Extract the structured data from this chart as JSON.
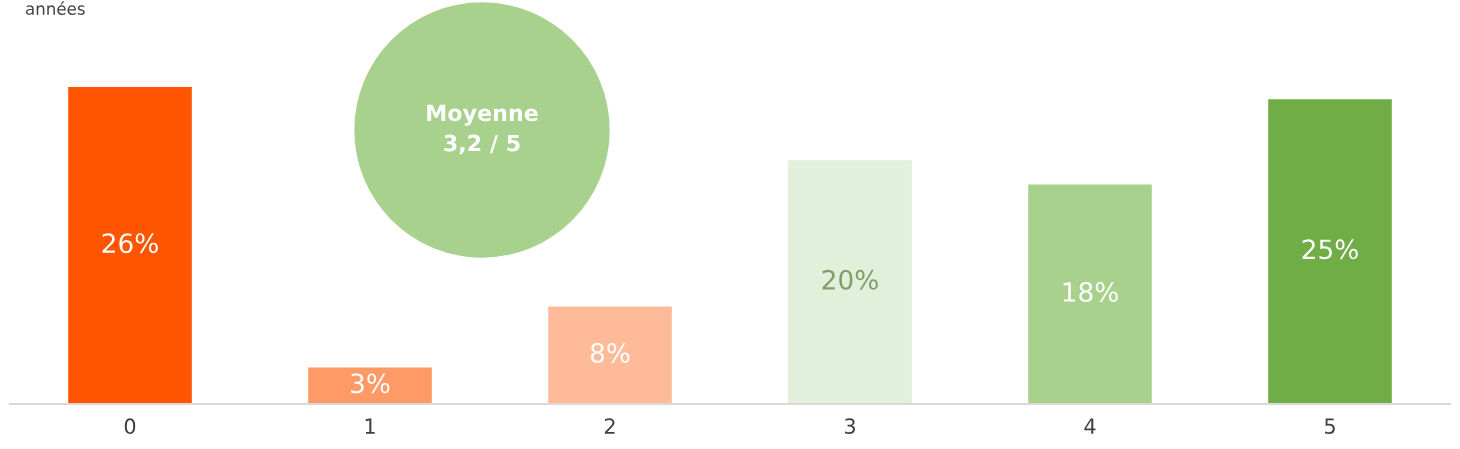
{
  "chart_data": {
    "type": "bar",
    "categories": [
      "0",
      "1",
      "2",
      "3",
      "4",
      "5"
    ],
    "values": [
      26,
      3,
      8,
      20,
      18,
      25
    ],
    "colors": [
      "#ff5500",
      "#ff9966",
      "#ffbb99",
      "#e2efda",
      "#a9d18e",
      "#70ad47"
    ],
    "value_labels": [
      "26%",
      "3%",
      "8%",
      "20%",
      "18%",
      "25%"
    ],
    "annotations": [
      "années",
      "Moyenne\n3,2 / 5"
    ],
    "grid": false,
    "legend": false,
    "tick_labels": "x"
  }
}
